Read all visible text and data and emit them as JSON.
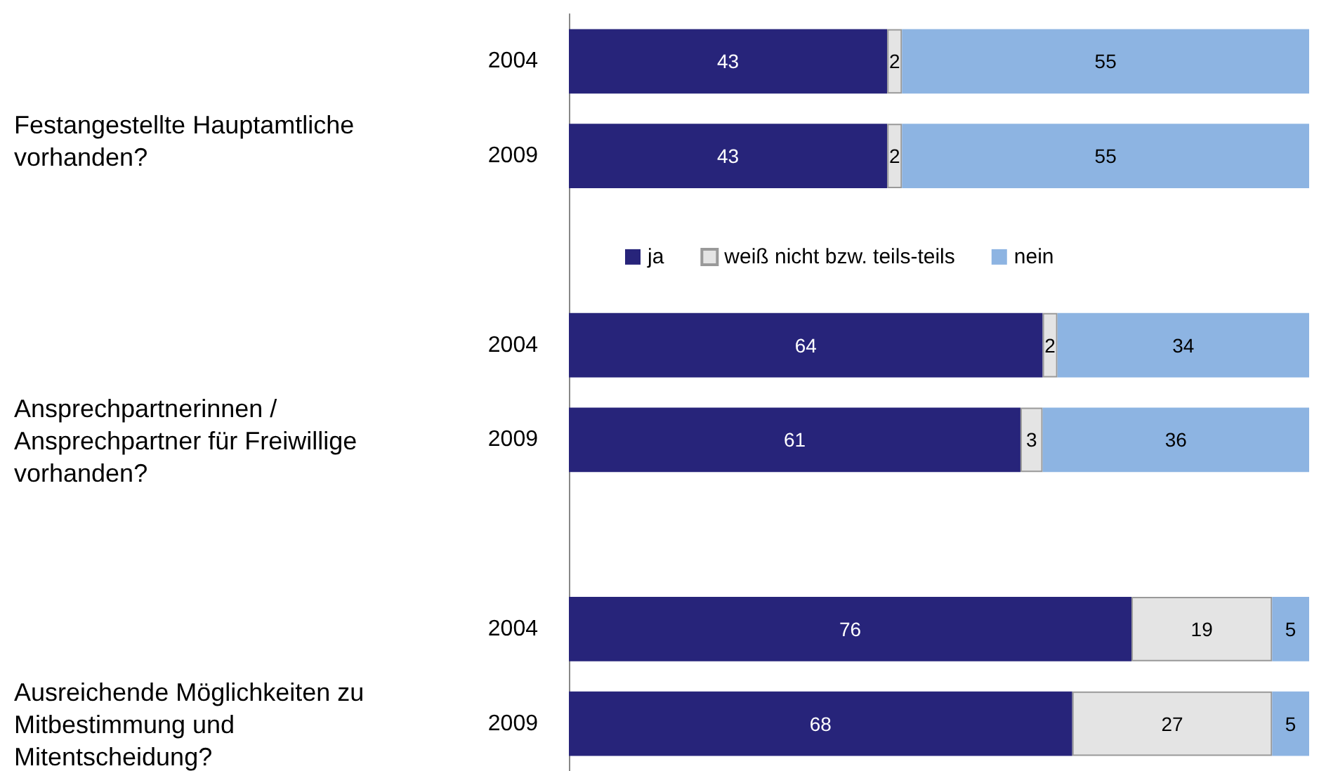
{
  "chart_data": {
    "type": "bar",
    "orientation": "horizontal",
    "stacked": true,
    "categories": [
      "2004",
      "2009",
      null,
      "2004",
      "2009",
      null,
      "2004",
      "2009"
    ],
    "series": [
      {
        "name": "ja",
        "color": "#27247a",
        "values": [
          43,
          43,
          null,
          64,
          61,
          null,
          76,
          68
        ]
      },
      {
        "name": "weiß nicht bzw. teils-teils",
        "color": "#e4e4e4",
        "values": [
          2,
          2,
          null,
          2,
          3,
          null,
          19,
          27
        ]
      },
      {
        "name": "nein",
        "color": "#8db4e2",
        "values": [
          55,
          55,
          null,
          34,
          36,
          null,
          5,
          5
        ]
      }
    ],
    "xlim": [
      0,
      100
    ],
    "tick_labels": "y",
    "grid": false,
    "legend": "center",
    "data_labels": true,
    "annotations": [
      "Festangestellte Hauptamtliche vorhanden?",
      "Ansprechpartnerinnen / Ansprechpartner für Freiwillige vorhanden?",
      "Ausreichende Möglichkeiten zu Mitbestimmung und Mitentscheidung?"
    ]
  }
}
